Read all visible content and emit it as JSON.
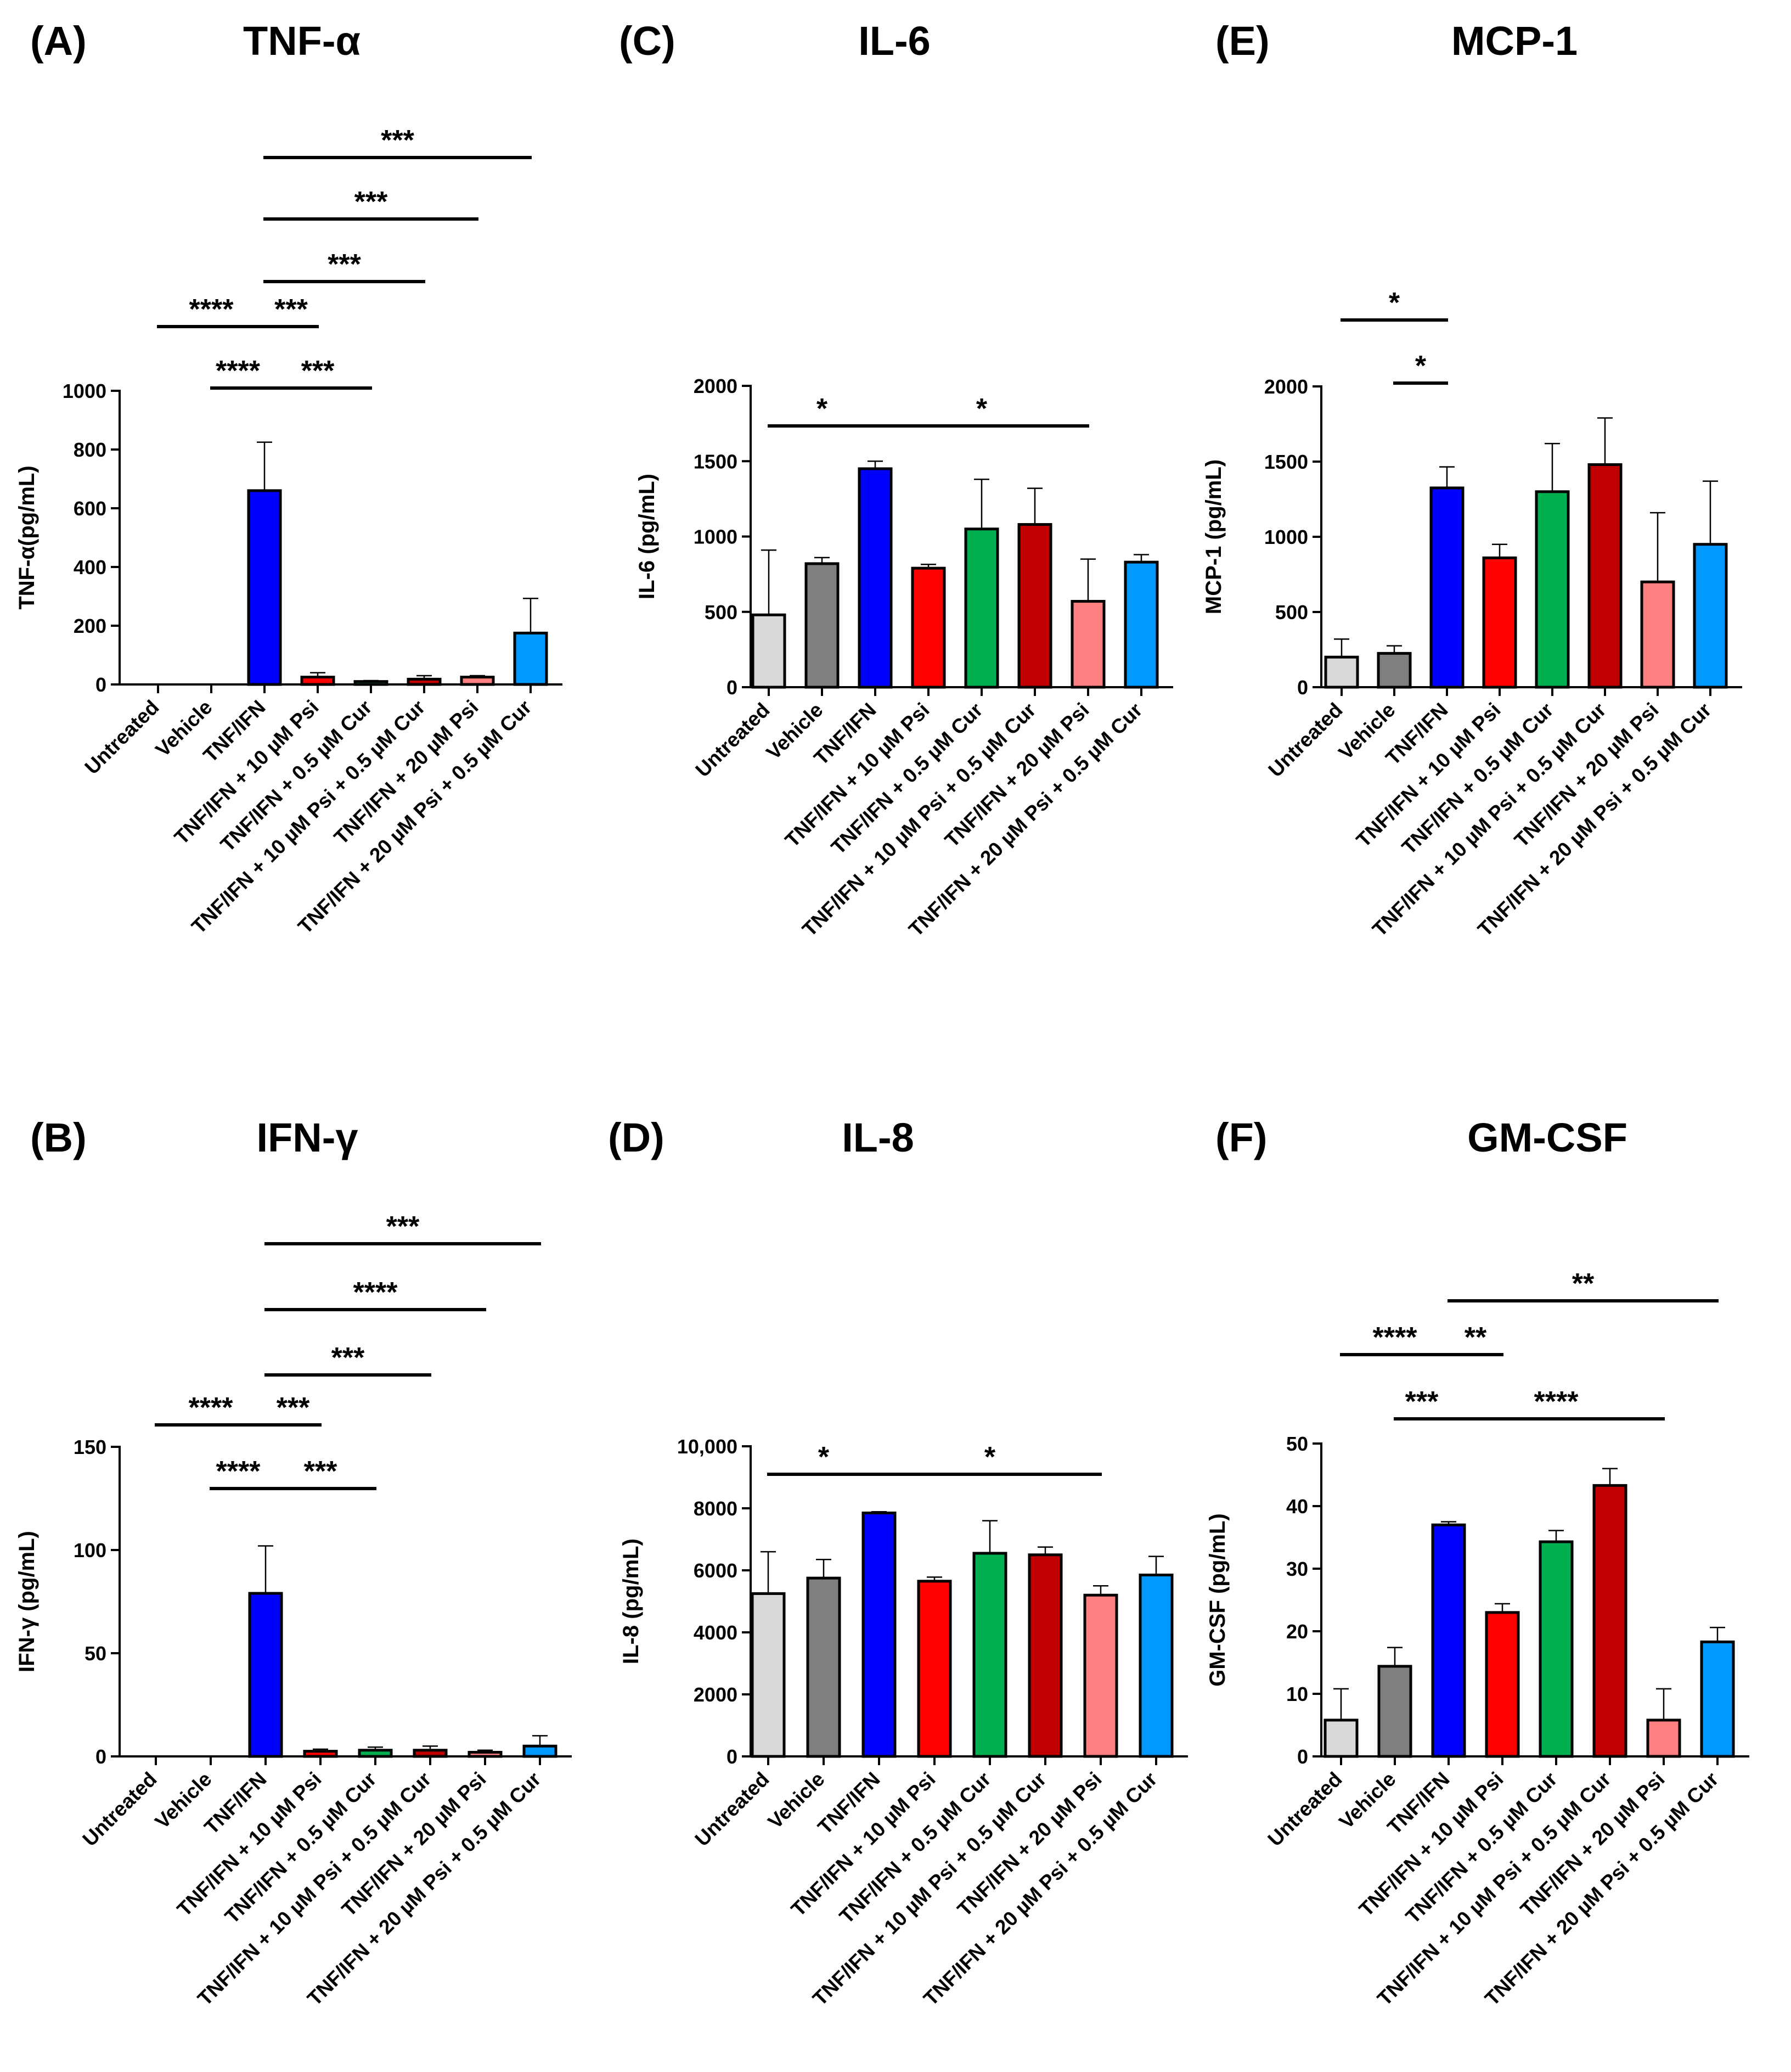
{
  "categories": [
    "Untreated",
    "Vehicle",
    "TNF/IFN",
    "TNF/IFN + 10 µM Psi",
    "TNF/IFN + 0.5 µM Cur",
    "TNF/IFN + 10 µM Psi + 0.5 µM Cur",
    "TNF/IFN + 20 µM Psi",
    "TNF/IFN + 20 µM Psi + 0.5 µM Cur"
  ],
  "colors": [
    "#d9d9d9",
    "#7f7f7f",
    "#0000ff",
    "#ff0000",
    "#00b050",
    "#c00000",
    "#ff8080",
    "#0099ff"
  ],
  "chart_data": [
    {
      "type": "bar",
      "letter": "(A)",
      "title": "TNF-α",
      "ylabel": "TNF-α(pg/mL)",
      "ylim": [
        0,
        1000
      ],
      "yticks": [
        0,
        200,
        400,
        600,
        800,
        1000
      ],
      "ytick_labels": [
        "0",
        "200",
        "400",
        "600",
        "800",
        "1000"
      ],
      "values": [
        0,
        0,
        660,
        25,
        10,
        18,
        25,
        175
      ],
      "errors": [
        0,
        0,
        165,
        15,
        3,
        12,
        5,
        118
      ],
      "significance": [
        {
          "from": 0,
          "to": 2,
          "label": "****"
        },
        {
          "from": 1,
          "to": 2,
          "label": "****"
        },
        {
          "from": 2,
          "to": 3,
          "label": "***"
        },
        {
          "from": 2,
          "to": 4,
          "label": "***"
        },
        {
          "from": 2,
          "to": 5,
          "label": "***"
        },
        {
          "from": 2,
          "to": 6,
          "label": "***"
        },
        {
          "from": 2,
          "to": 7,
          "label": "***"
        }
      ]
    },
    {
      "type": "bar",
      "letter": "(B)",
      "title": "IFN-γ",
      "ylabel": "IFN-γ (pg/mL)",
      "ylim": [
        0,
        150
      ],
      "yticks": [
        0,
        50,
        100,
        150
      ],
      "ytick_labels": [
        "0",
        "50",
        "100",
        "150"
      ],
      "values": [
        0,
        0,
        79,
        2.5,
        3,
        3,
        2,
        5
      ],
      "errors": [
        0,
        0,
        23,
        1,
        1.5,
        2,
        1,
        5
      ],
      "significance": [
        {
          "from": 0,
          "to": 2,
          "label": "****"
        },
        {
          "from": 1,
          "to": 2,
          "label": "****"
        },
        {
          "from": 2,
          "to": 3,
          "label": "***"
        },
        {
          "from": 2,
          "to": 4,
          "label": "***"
        },
        {
          "from": 2,
          "to": 5,
          "label": "***"
        },
        {
          "from": 2,
          "to": 6,
          "label": "****"
        },
        {
          "from": 2,
          "to": 7,
          "label": "***"
        }
      ]
    },
    {
      "type": "bar",
      "letter": "(C)",
      "title": "IL-6",
      "ylabel": "IL-6 (pg/mL)",
      "ylim": [
        0,
        2000
      ],
      "yticks": [
        0,
        500,
        1000,
        1500,
        2000
      ],
      "ytick_labels": [
        "0",
        "500",
        "1000",
        "1500",
        "2000"
      ],
      "values": [
        480,
        820,
        1450,
        790,
        1050,
        1080,
        570,
        830
      ],
      "errors": [
        430,
        40,
        50,
        25,
        330,
        240,
        280,
        50
      ],
      "significance": [
        {
          "from": 0,
          "to": 2,
          "label": "*"
        },
        {
          "from": 2,
          "to": 6,
          "label": "*"
        }
      ]
    },
    {
      "type": "bar",
      "letter": "(D)",
      "title": "IL-8",
      "ylabel": "IL-8 (pg/mL)",
      "ylim": [
        0,
        10000
      ],
      "yticks": [
        0,
        2000,
        4000,
        6000,
        8000,
        10000
      ],
      "ytick_labels": [
        "0",
        "2000",
        "4000",
        "6000",
        "8000",
        "10,000"
      ],
      "values": [
        5250,
        5750,
        7850,
        5650,
        6550,
        6500,
        5200,
        5850
      ],
      "errors": [
        1350,
        600,
        40,
        130,
        1050,
        250,
        300,
        600
      ],
      "significance": [
        {
          "from": 0,
          "to": 2,
          "label": "*"
        },
        {
          "from": 2,
          "to": 6,
          "label": "*"
        }
      ]
    },
    {
      "type": "bar",
      "letter": "(E)",
      "title": "MCP-1",
      "ylabel": "MCP-1 (pg/mL)",
      "ylim": [
        0,
        2000
      ],
      "yticks": [
        0,
        500,
        1000,
        1500,
        2000
      ],
      "ytick_labels": [
        "0",
        "500",
        "1000",
        "1500",
        "2000"
      ],
      "values": [
        200,
        225,
        1325,
        860,
        1300,
        1480,
        700,
        950
      ],
      "errors": [
        120,
        50,
        140,
        90,
        320,
        310,
        460,
        420
      ],
      "significance": [
        {
          "from": 0,
          "to": 2,
          "label": "*"
        },
        {
          "from": 1,
          "to": 2,
          "label": "*"
        }
      ]
    },
    {
      "type": "bar",
      "letter": "(F)",
      "title": "GM-CSF",
      "ylabel": "GM-CSF (pg/mL)",
      "ylim": [
        0,
        50
      ],
      "yticks": [
        0,
        10,
        20,
        30,
        40,
        50
      ],
      "ytick_labels": [
        "0",
        "10",
        "20",
        "30",
        "40",
        "50"
      ],
      "values": [
        5.8,
        14.4,
        37,
        23,
        34.3,
        43.3,
        5.8,
        18.3
      ],
      "errors": [
        5,
        3,
        0.5,
        1.4,
        1.8,
        2.7,
        5,
        2.3
      ],
      "significance": [
        {
          "from": 0,
          "to": 2,
          "label": "****"
        },
        {
          "from": 1,
          "to": 2,
          "label": "***"
        },
        {
          "from": 2,
          "to": 3,
          "label": "**"
        },
        {
          "from": 2,
          "to": 6,
          "label": "****"
        },
        {
          "from": 2,
          "to": 7,
          "label": "**"
        }
      ]
    }
  ]
}
